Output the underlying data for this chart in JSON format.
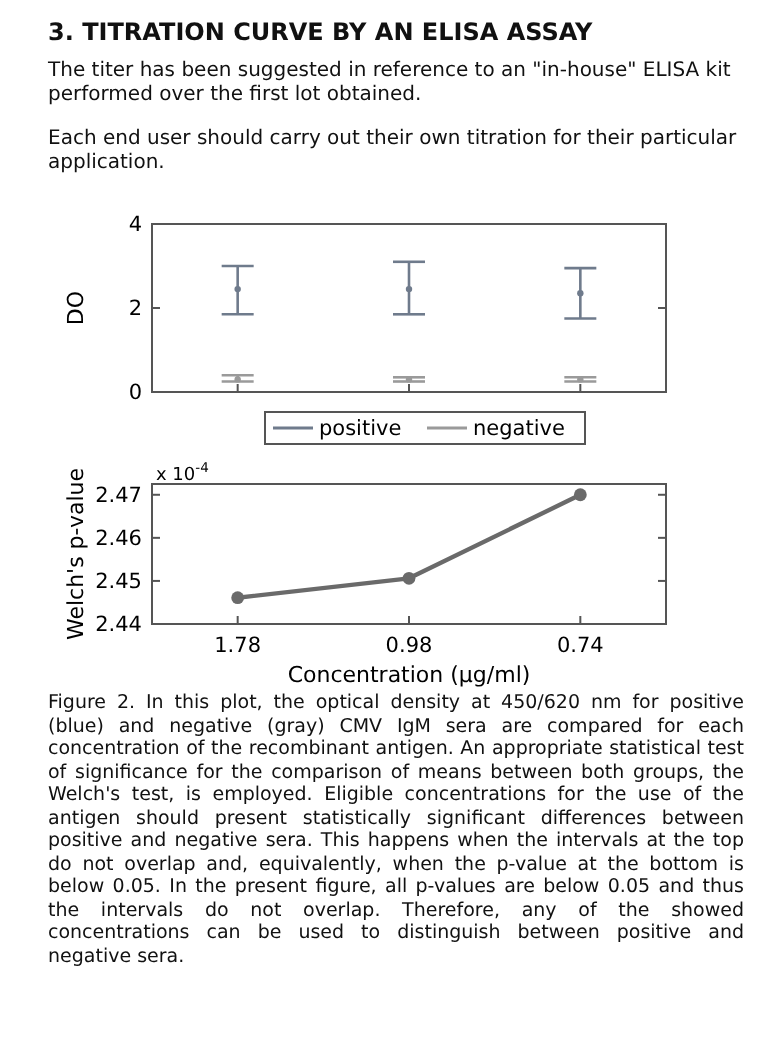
{
  "chart_data": [
    {
      "type": "scatter",
      "title": "3. TITRATION CURVE BY AN ELISA ASSAY",
      "subtitle": "The titer has been suggested in reference to an \"in-house\" ELISA kit performed over the first lot obtained.",
      "annotations": [
        "Each end user should carry out their own titration for their particular application."
      ],
      "ylabel": "DO",
      "categories": [
        "1.78",
        "0.98",
        "0.74"
      ],
      "ylim": [
        0,
        4
      ],
      "yticks": [
        0,
        2,
        4
      ],
      "tick_labels": "y",
      "legend": "bottom",
      "series": [
        {
          "name": "positive",
          "color": "#6f7b8c",
          "values": [
            2.45,
            2.45,
            2.35
          ],
          "errors": [
            [
              1.85,
              3
            ],
            [
              1.85,
              3.1
            ],
            [
              1.75,
              2.95
            ]
          ]
        },
        {
          "name": "negative",
          "color": "#9a9a9a",
          "values": [
            0.3,
            0.3,
            0.3
          ],
          "errors": [
            [
              0.25,
              0.4
            ],
            [
              0.25,
              0.35
            ],
            [
              0.25,
              0.35
            ]
          ]
        }
      ]
    },
    {
      "type": "line",
      "xlabel": "Concentration (µg/ml)",
      "ylabel": "Welch's p-value",
      "categories": [
        "1.78",
        "0.98",
        "0.74"
      ],
      "ylim": [
        2.44,
        2.4725
      ],
      "yticks": [
        {
          "value": 2.44,
          "label": "2.44"
        },
        {
          "value": 2.45,
          "label": "2.45"
        },
        {
          "value": 2.46,
          "label": "2.46"
        },
        {
          "value": 2.47,
          "label": "2.47"
        }
      ],
      "marker": "circle",
      "series": [
        {
          "color": "#6a6a6a",
          "values": [
            2.4461,
            2.4506,
            2.47
          ]
        }
      ],
      "annotations": [
        "x 10$^{-4}$",
        "Figure 2. In this plot, the optical density at 450/620 nm for positive (blue) and negative (gray) CMV IgM sera are compared for each concentration of the recombinant antigen. An appropriate statistical test of significance for the comparison of means between both groups, the Welch's test, is employed. Eligible concentrations for the use of the antigen should present statistically significant differences between positive and negative sera. This happens when the intervals at the top do not overlap and, equivalently, when the p-value at the bottom is below 0.05. In the present figure, all p-values are below 0.05 and thus the intervals do not overlap. Therefore, any of the showed concentrations can be used to distinguish between positive and negative sera."
      ]
    }
  ]
}
